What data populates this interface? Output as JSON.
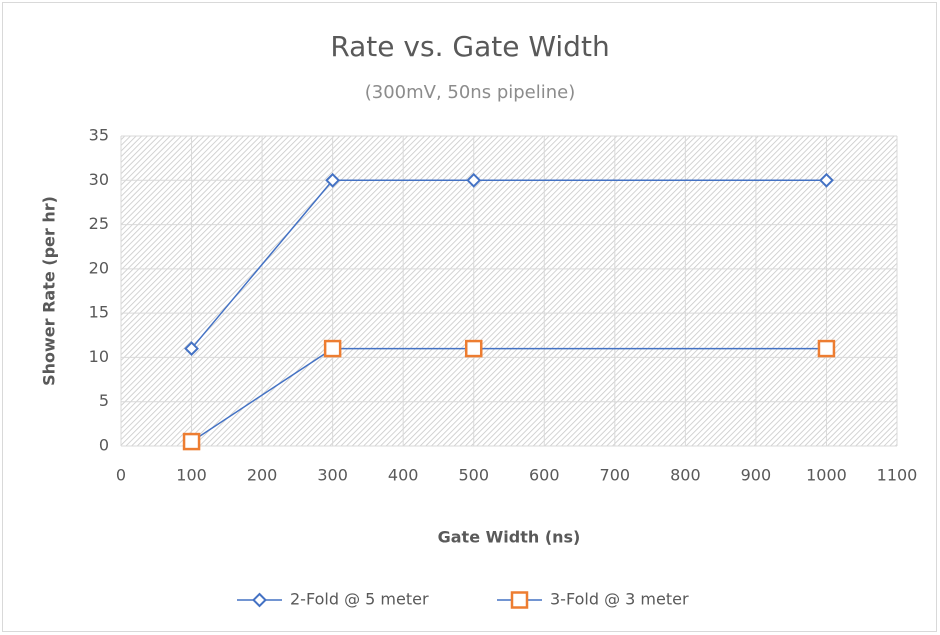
{
  "chart_data": {
    "type": "line",
    "title": "Rate vs. Gate Width",
    "subtitle": "(300mV, 50ns pipeline)",
    "x_label": "Gate Width (ns)",
    "y_label": "Shower Rate (per hr)",
    "x": [
      100,
      300,
      500,
      1000
    ],
    "series": [
      {
        "name": "2-Fold @ 5 meter",
        "color": "#4472c4",
        "line_color": "#4472c4",
        "marker": "diamond",
        "values": [
          11,
          30,
          30,
          30
        ]
      },
      {
        "name": "3-Fold @ 3 meter",
        "color": "#ed7d31",
        "line_color": "#4472c4",
        "marker": "square",
        "values": [
          0.5,
          11,
          11,
          11
        ]
      }
    ],
    "xlim": [
      0,
      1100
    ],
    "xticks": [
      0,
      100,
      200,
      300,
      400,
      500,
      600,
      700,
      800,
      900,
      1000,
      1100
    ],
    "ylim": [
      0,
      35
    ],
    "yticks": [
      0,
      5,
      10,
      15,
      20,
      25,
      30,
      35
    ],
    "grid": true,
    "legend": "bottom"
  }
}
